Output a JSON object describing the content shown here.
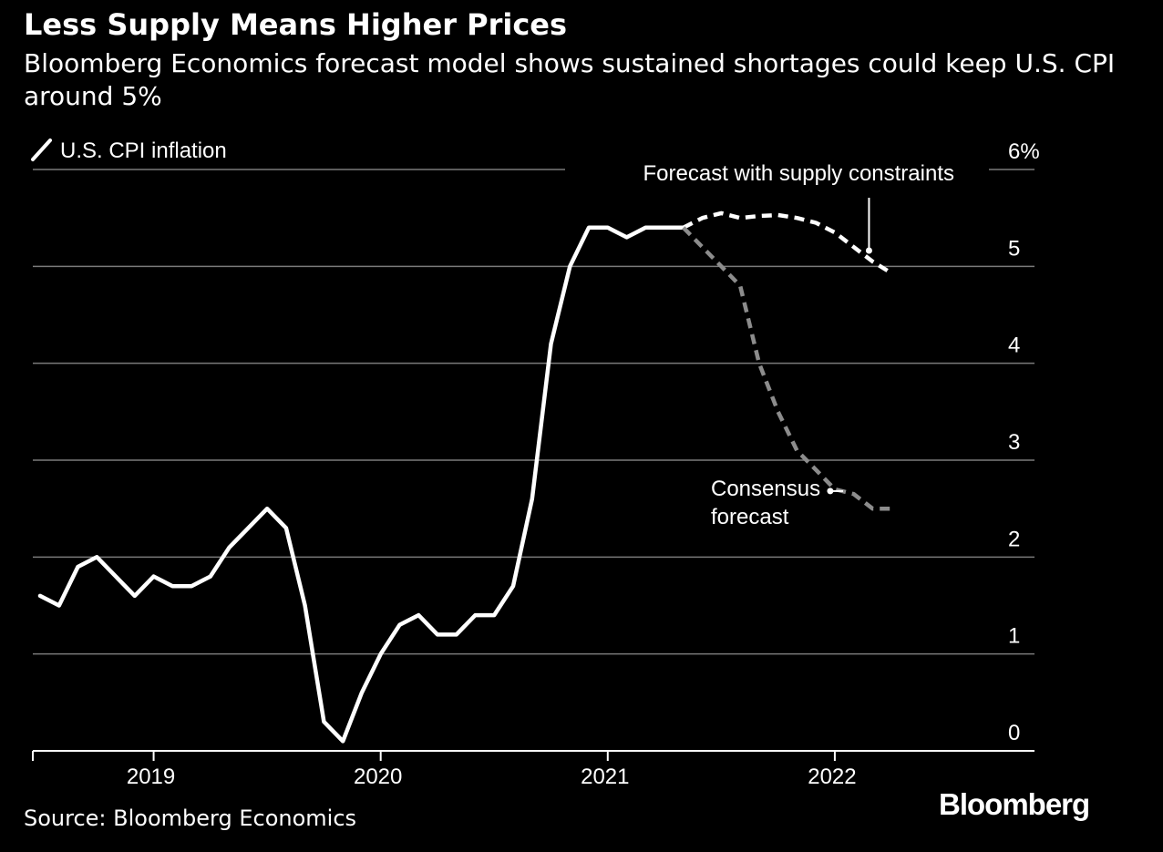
{
  "header": {
    "title": "Less Supply Means Higher Prices",
    "subtitle": "Bloomberg Economics forecast model shows sustained shortages could keep U.S. CPI around 5%"
  },
  "footer": {
    "source": "Source: Bloomberg Economics",
    "logo": "Bloomberg"
  },
  "chart_data": {
    "type": "line",
    "title": "Less Supply Means Higher Prices",
    "subtitle": "Bloomberg Economics forecast model shows sustained shortages could keep U.S. CPI around 5%",
    "xlabel": "",
    "ylabel": "",
    "ylim": [
      0,
      6
    ],
    "y_ticks": [
      {
        "value": 0,
        "label": "0"
      },
      {
        "value": 1,
        "label": "1"
      },
      {
        "value": 2,
        "label": "2"
      },
      {
        "value": 3,
        "label": "3"
      },
      {
        "value": 4,
        "label": "4"
      },
      {
        "value": 5,
        "label": "5"
      },
      {
        "value": 6,
        "label": "6%"
      }
    ],
    "y_axis_position": "right",
    "grid": true,
    "x_ticks": [
      {
        "date": "2019-01",
        "label": "2019"
      },
      {
        "date": "2020-01",
        "label": "2020"
      },
      {
        "date": "2021-01",
        "label": "2021"
      },
      {
        "date": "2022-01",
        "label": "2022"
      }
    ],
    "xlim": [
      "2018-07",
      "2022-11"
    ],
    "legend": {
      "label": "U.S. CPI inflation",
      "placement": "top-left"
    },
    "series": [
      {
        "name": "U.S. CPI inflation",
        "style": "solid",
        "color": "#ffffff",
        "points": [
          [
            "2018-07",
            1.6
          ],
          [
            "2018-08",
            1.5
          ],
          [
            "2018-09",
            1.9
          ],
          [
            "2018-10",
            2.0
          ],
          [
            "2018-11",
            1.8
          ],
          [
            "2018-12",
            1.6
          ],
          [
            "2019-01",
            1.8
          ],
          [
            "2019-02",
            1.7
          ],
          [
            "2019-03",
            1.7
          ],
          [
            "2019-04",
            1.8
          ],
          [
            "2019-05",
            2.1
          ],
          [
            "2019-06",
            2.3
          ],
          [
            "2019-07",
            2.5
          ],
          [
            "2019-08",
            2.3
          ],
          [
            "2019-09",
            1.5
          ],
          [
            "2019-10",
            0.3
          ],
          [
            "2019-11",
            0.1
          ],
          [
            "2019-12",
            0.6
          ],
          [
            "2020-01",
            1.0
          ],
          [
            "2020-02",
            1.3
          ],
          [
            "2020-03",
            1.4
          ],
          [
            "2020-04",
            1.2
          ],
          [
            "2020-05",
            1.2
          ],
          [
            "2020-06",
            1.4
          ],
          [
            "2020-07",
            1.4
          ],
          [
            "2020-08",
            1.7
          ],
          [
            "2020-09",
            2.6
          ],
          [
            "2020-10",
            4.2
          ],
          [
            "2020-11",
            5.0
          ],
          [
            "2020-12",
            5.4
          ],
          [
            "2021-01",
            5.4
          ],
          [
            "2021-02",
            5.3
          ],
          [
            "2021-03",
            5.4
          ],
          [
            "2021-04",
            5.4
          ],
          [
            "2021-05",
            5.4
          ]
        ]
      },
      {
        "name": "Forecast with supply constraints",
        "style": "dashed",
        "color": "#ffffff",
        "points": [
          [
            "2021-05",
            5.4
          ],
          [
            "2021-06",
            5.5
          ],
          [
            "2021-07",
            5.55
          ],
          [
            "2021-08",
            5.5
          ],
          [
            "2021-09",
            5.52
          ],
          [
            "2021-10",
            5.53
          ],
          [
            "2021-11",
            5.5
          ],
          [
            "2021-12",
            5.45
          ],
          [
            "2022-01",
            5.35
          ],
          [
            "2022-02",
            5.2
          ],
          [
            "2022-03",
            5.05
          ],
          [
            "2022-04",
            4.93
          ]
        ]
      },
      {
        "name": "Consensus forecast",
        "style": "dashed",
        "color": "#8c8c8c",
        "points": [
          [
            "2021-05",
            5.4
          ],
          [
            "2021-06",
            5.2
          ],
          [
            "2021-07",
            5.0
          ],
          [
            "2021-08",
            4.8
          ],
          [
            "2021-09",
            4.0
          ],
          [
            "2021-10",
            3.5
          ],
          [
            "2021-11",
            3.1
          ],
          [
            "2021-12",
            2.9
          ],
          [
            "2022-01",
            2.7
          ],
          [
            "2022-02",
            2.65
          ],
          [
            "2022-03",
            2.5
          ],
          [
            "2022-04",
            2.5
          ]
        ]
      }
    ],
    "annotations": [
      {
        "text": "Forecast with supply constraints",
        "series": "Forecast with supply constraints",
        "date": "2022-03"
      },
      {
        "text": "Consensus forecast",
        "lines": [
          "Consensus",
          "forecast"
        ],
        "series": "Consensus forecast",
        "date": "2022-01"
      }
    ]
  }
}
